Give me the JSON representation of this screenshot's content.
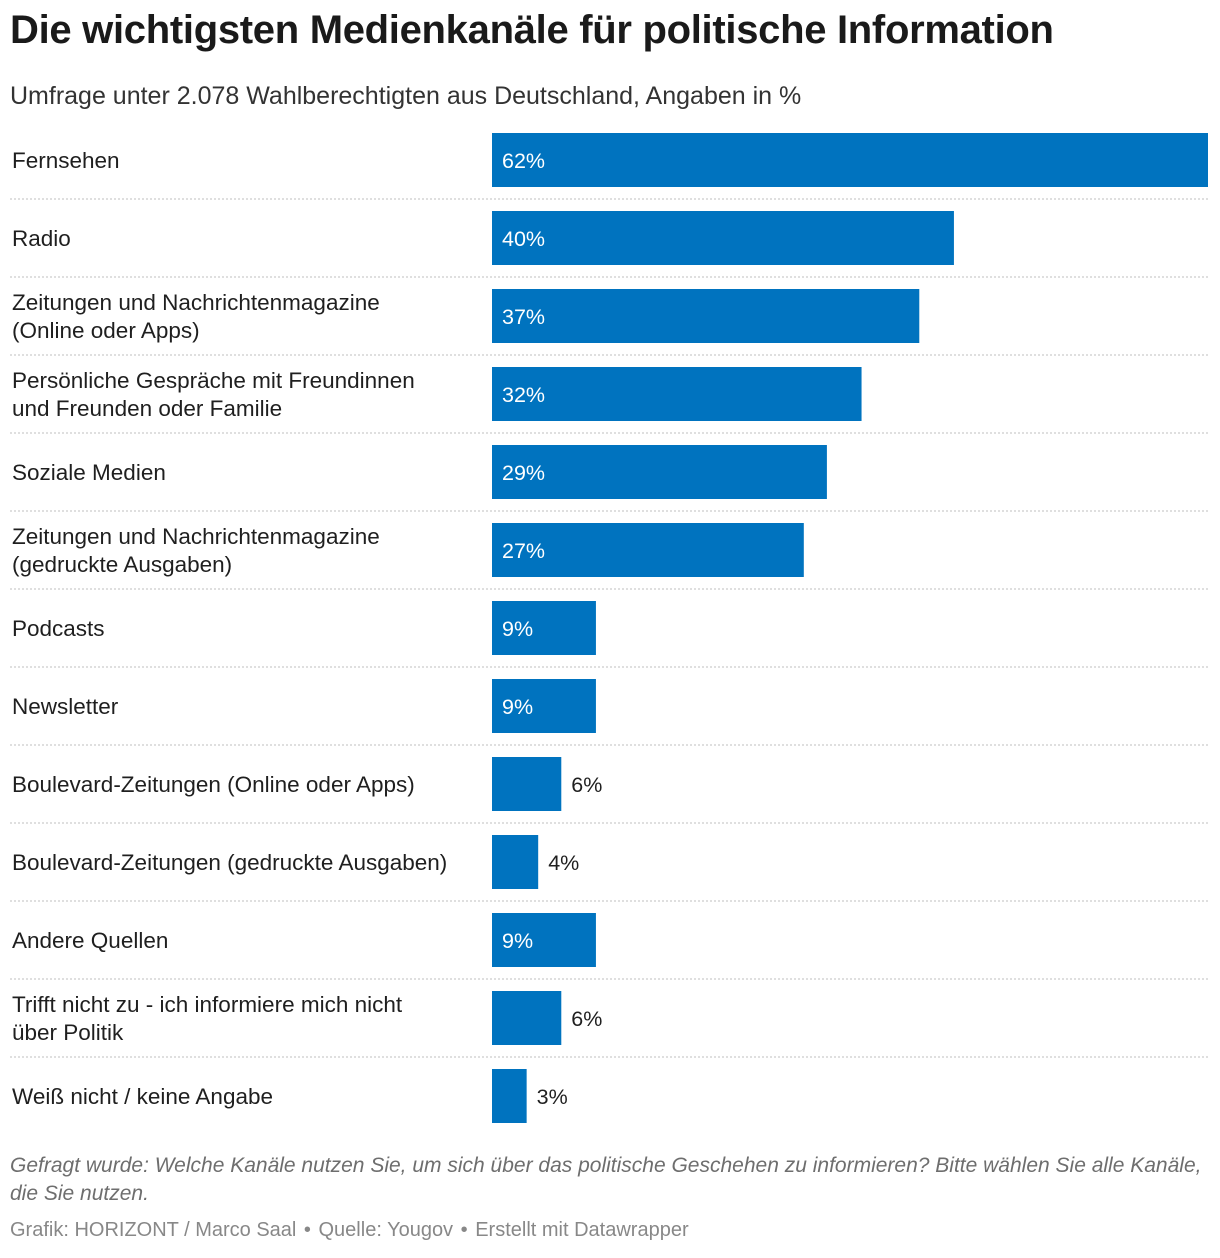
{
  "title": "Die wichtigsten Medienkanäle für politische Information",
  "subtitle": "Umfrage unter 2.078 Wahlberechtigten aus Deutschland, Angaben in %",
  "chart_data": {
    "type": "bar",
    "orientation": "horizontal",
    "unit": "%",
    "xlim": [
      0,
      62
    ],
    "categories": [
      [
        "Fernsehen"
      ],
      [
        "Radio"
      ],
      [
        "Zeitungen und Nachrichtenmagazine",
        "(Online oder Apps)"
      ],
      [
        "Persönliche Gespräche mit Freundinnen",
        "und Freunden oder Familie"
      ],
      [
        "Soziale Medien"
      ],
      [
        "Zeitungen und Nachrichtenmagazine",
        "(gedruckte Ausgaben)"
      ],
      [
        "Podcasts"
      ],
      [
        "Newsletter"
      ],
      [
        "Boulevard-Zeitungen (Online oder Apps)"
      ],
      [
        "Boulevard-Zeitungen (gedruckte Ausgaben)"
      ],
      [
        "Andere Quellen"
      ],
      [
        "Trifft nicht zu - ich informiere mich nicht",
        "über Politik"
      ],
      [
        "Weiß nicht / keine Angabe"
      ]
    ],
    "values": [
      62,
      40,
      37,
      32,
      29,
      27,
      9,
      9,
      6,
      4,
      9,
      6,
      3
    ],
    "value_labels": [
      "62%",
      "40%",
      "37%",
      "32%",
      "29%",
      "27%",
      "9%",
      "9%",
      "6%",
      "4%",
      "9%",
      "6%",
      "3%"
    ],
    "bar_color": "#0073bf",
    "label_inside_color": "#ffffff",
    "label_outside_color": "#1f1f1f",
    "separator_color": "#cccccc"
  },
  "note": "Gefragt wurde: Welche Kanäle nutzen Sie, um sich über das politische Geschehen zu informieren? Bitte wählen Sie alle Kanäle, die Sie nutzen.",
  "footer": {
    "grafik": "Grafik: HORIZONT / Marco Saal",
    "separator": "•",
    "quelle": "Quelle: Yougov",
    "tool": "Erstellt mit Datawrapper"
  }
}
